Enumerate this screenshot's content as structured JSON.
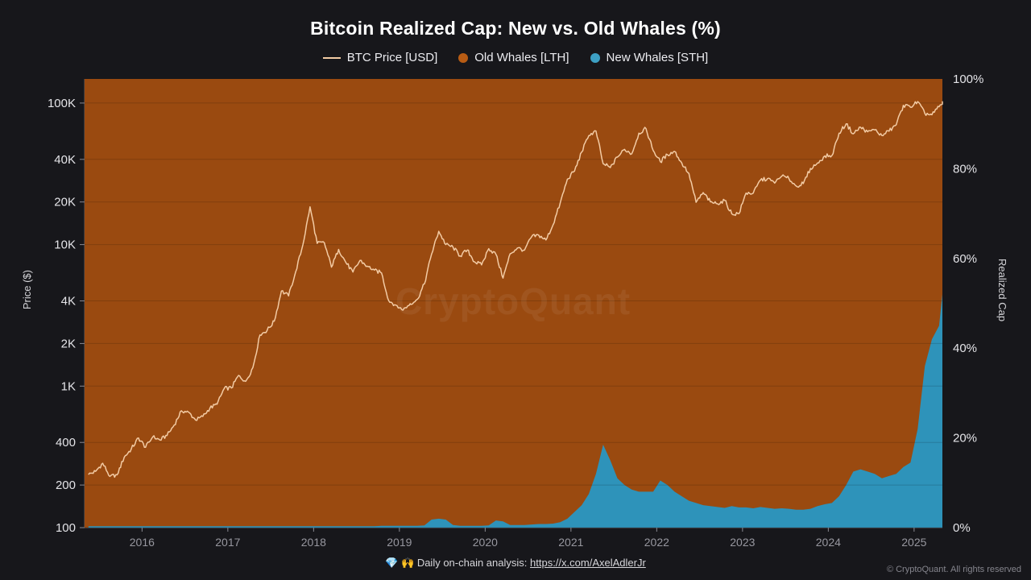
{
  "page": {
    "title": "Bitcoin Realized Cap: New vs. Old Whales (%)",
    "watermark": "CryptoQuant",
    "background": "#17171b",
    "footer": {
      "emoji": "💎 🙌",
      "text": "Daily on-chain analysis:",
      "link_text": "https://x.com/AxelAdlerJr",
      "link_href": "https://x.com/AxelAdlerJr",
      "copyright": "© CryptoQuant. All rights reserved"
    }
  },
  "legend": [
    {
      "label": "BTC Price [USD]",
      "marker": "line",
      "color": "#f3cba4"
    },
    {
      "label": "Old Whales [LTH]",
      "marker": "dot",
      "color": "#b85c14"
    },
    {
      "label": "New Whales [STH]",
      "marker": "dot",
      "color": "#3da0c4"
    }
  ],
  "axes": {
    "left": {
      "title": "Price ($)",
      "scale": "log",
      "tick_labels": [
        "100K",
        "40K",
        "20K",
        "10K",
        "4K",
        "2K",
        "1K",
        "400",
        "200",
        "100"
      ],
      "tick_values": [
        100000,
        40000,
        20000,
        10000,
        4000,
        2000,
        1000,
        400,
        200,
        100
      ]
    },
    "right": {
      "title": "Realized Cap",
      "scale": "linear",
      "tick_labels": [
        "100%",
        "80%",
        "60%",
        "40%",
        "20%",
        "0%"
      ],
      "tick_values": [
        100,
        80,
        60,
        40,
        20,
        0
      ]
    },
    "x": {
      "tick_labels": [
        "2016",
        "2017",
        "2018",
        "2019",
        "2020",
        "2021",
        "2022",
        "2023",
        "2024",
        "2025"
      ],
      "tick_values": [
        2016,
        2017,
        2018,
        2019,
        2020,
        2021,
        2022,
        2023,
        2024,
        2025
      ]
    }
  },
  "chart_data": {
    "type": "area+line",
    "title": "Bitcoin Realized Cap: New vs. Old Whales (%)",
    "frequency": "monthly",
    "start_month": "2015-05",
    "end_month": "2025-05",
    "x_range_decimal_years": [
      2015.33,
      2025.33
    ],
    "price_axis": {
      "scale": "log",
      "min": 100,
      "max": 148000,
      "unit": "USD"
    },
    "pct_axis": {
      "min": 0,
      "max": 100,
      "unit": "%"
    },
    "colors": {
      "old_whales": "#9a4a10",
      "new_whales": "#2e93ba",
      "price_line": "#f3cba4",
      "grid": "rgba(0,0,0,0.16)"
    },
    "series": [
      {
        "name": "BTC Price [USD]",
        "type": "line",
        "axis": "left",
        "color": "#f3cba4",
        "values": [
          237,
          250,
          285,
          230,
          236,
          314,
          360,
          430,
          370,
          438,
          416,
          448,
          531,
          670,
          655,
          575,
          610,
          700,
          745,
          963,
          970,
          1190,
          1080,
          1350,
          2300,
          2480,
          2875,
          4700,
          4340,
          6450,
          9950,
          18500,
          10200,
          10300,
          6930,
          9240,
          7490,
          6400,
          7730,
          7030,
          6600,
          6300,
          4020,
          3740,
          3440,
          3820,
          4100,
          5270,
          8560,
          12400,
          10000,
          9600,
          8300,
          9150,
          7560,
          7190,
          9350,
          8540,
          5800,
          8620,
          9450,
          9140,
          11350,
          11650,
          10780,
          13800,
          19700,
          29000,
          33100,
          45100,
          58800,
          63500,
          37300,
          35000,
          41500,
          47100,
          43800,
          61300,
          66000,
          46200,
          38500,
          43200,
          45500,
          37700,
          31800,
          19900,
          23300,
          20050,
          19400,
          20500,
          16500,
          16550,
          23100,
          23150,
          28500,
          29250,
          27200,
          30480,
          29230,
          25930,
          26970,
          34500,
          37700,
          42270,
          42580,
          61200,
          71300,
          60640,
          67500,
          62680,
          64600,
          58970,
          63330,
          70200,
          96400,
          93400,
          102400,
          84350,
          82550,
          94200,
          103000
        ]
      },
      {
        "name": "New Whales [STH]",
        "type": "area",
        "axis": "right",
        "color": "#2e93ba",
        "values": [
          0.3,
          0.3,
          0.3,
          0.3,
          0.3,
          0.3,
          0.3,
          0.3,
          0.3,
          0.3,
          0.3,
          0.3,
          0.3,
          0.3,
          0.3,
          0.3,
          0.3,
          0.3,
          0.3,
          0.3,
          0.3,
          0.3,
          0.3,
          0.3,
          0.3,
          0.3,
          0.3,
          0.3,
          0.3,
          0.3,
          0.3,
          0.3,
          0.3,
          0.3,
          0.3,
          0.3,
          0.3,
          0.3,
          0.3,
          0.3,
          0.3,
          0.4,
          0.4,
          0.4,
          0.4,
          0.4,
          0.4,
          0.5,
          1.8,
          2.0,
          1.8,
          0.6,
          0.4,
          0.4,
          0.4,
          0.4,
          0.5,
          1.6,
          1.4,
          0.6,
          0.6,
          0.6,
          0.7,
          0.8,
          0.8,
          0.9,
          1.2,
          2.0,
          3.5,
          5.0,
          7.5,
          12.0,
          18.5,
          15.0,
          11.0,
          9.5,
          8.5,
          8.0,
          8.0,
          8.0,
          10.5,
          9.5,
          8.0,
          7.0,
          6.0,
          5.5,
          5.0,
          4.8,
          4.6,
          4.4,
          4.8,
          4.5,
          4.5,
          4.3,
          4.6,
          4.4,
          4.2,
          4.3,
          4.2,
          4.0,
          4.0,
          4.2,
          4.8,
          5.2,
          5.5,
          7.0,
          9.5,
          12.5,
          13.0,
          12.5,
          12.0,
          11.0,
          11.5,
          12.0,
          13.5,
          14.5,
          22.0,
          36.0,
          42.0,
          45.0,
          52.0
        ]
      },
      {
        "name": "Old Whales [LTH]",
        "type": "area",
        "axis": "right",
        "color": "#9a4a10",
        "note": "stacked remainder: 100 − New Whales [STH], fills up to 100%"
      }
    ]
  }
}
